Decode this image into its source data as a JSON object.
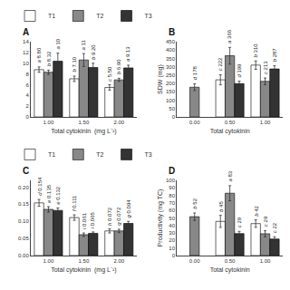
{
  "chart_data": [
    {
      "type": "bar",
      "title": "A",
      "xlabel": "Total cytokinin  (mg L⁻¹)",
      "categories": [
        "1.00",
        "1.50",
        "2.00"
      ],
      "ylim": [
        0,
        14
      ],
      "yticks": [
        0,
        2,
        4,
        6,
        8,
        10,
        12,
        14
      ],
      "grid": false,
      "legend": "upper right",
      "data_labels": true,
      "series": [
        {
          "name": "T1",
          "color": "white",
          "values": [
            8.8,
            7.1,
            5.5
          ],
          "errors": [
            0.5,
            0.5,
            0.5
          ],
          "letters": [
            "a",
            "b",
            "c"
          ],
          "value_labels": [
            "8.80",
            "7.10",
            "5.50"
          ]
        },
        {
          "name": "T2",
          "color": "#888888",
          "values": [
            8.32,
            10.6,
            6.9
          ],
          "errors": [
            0.4,
            1.2,
            0.3
          ],
          "letters": [
            "b",
            "a",
            "b"
          ],
          "value_labels": [
            "8.32",
            "11",
            "6.90"
          ]
        },
        {
          "name": "T3",
          "color": "#333333",
          "values": [
            10.37,
            9.2,
            9.13
          ],
          "errors": [
            1.5,
            0.8,
            0.5
          ],
          "letters": [
            "a",
            "b",
            "a"
          ],
          "value_labels": [
            "10",
            "9.20",
            "9.13"
          ]
        }
      ]
    },
    {
      "type": "bar",
      "title": "B",
      "xlabel": "Total cytokinin",
      "ylabel": "SDW (mg)",
      "categories": [
        "0.00",
        "0.50",
        "1.00"
      ],
      "ylim": [
        0,
        450
      ],
      "yticks": [
        0,
        50,
        100,
        150,
        200,
        250,
        300,
        350,
        400,
        450
      ],
      "grid": false,
      "data_labels": true,
      "series": [
        {
          "name": "T1",
          "color": "white",
          "values": [
            null,
            222,
            310
          ],
          "errors": [
            null,
            30,
            25
          ],
          "letters": [
            null,
            "c",
            "b"
          ],
          "value_labels": [
            null,
            "222",
            "310"
          ]
        },
        {
          "name": "T2",
          "color": "#888888",
          "values": [
            178,
            366,
            213
          ],
          "errors": [
            20,
            50,
            20
          ],
          "letters": [
            "d",
            "a",
            "c"
          ],
          "value_labels": [
            "178",
            "366",
            "213"
          ]
        },
        {
          "name": "T3",
          "color": "#333333",
          "values": [
            null,
            199,
            287
          ],
          "errors": [
            null,
            15,
            20
          ],
          "letters": [
            null,
            "d",
            "b"
          ],
          "value_labels": [
            null,
            "199",
            "287"
          ]
        }
      ]
    },
    {
      "type": "bar",
      "title": "C",
      "xlabel": "Total cytokinin  (mg L⁻¹)",
      "categories": [
        "1.00",
        "1.50",
        "2.00"
      ],
      "ylim": [
        0,
        0.22
      ],
      "yticks": [
        {
          "value": 0.0,
          "label": "0.00"
        },
        0.05,
        {
          "value": 0.1,
          "label": "0.10"
        },
        0.15,
        {
          "value": 0.2,
          "label": "0.20"
        }
      ],
      "grid": false,
      "legend": "upper right",
      "data_labels": true,
      "series": [
        {
          "name": "T1",
          "color": "white",
          "values": [
            0.154,
            0.111,
            0.072
          ],
          "errors": [
            0.01,
            0.008,
            0.006
          ],
          "letters": [
            "d",
            "f",
            "h"
          ],
          "value_labels": [
            "0.154",
            "0.111",
            "0.072"
          ]
        },
        {
          "name": "T2",
          "color": "#888888",
          "values": [
            0.135,
            0.061,
            0.072
          ],
          "errors": [
            0.008,
            0.005,
            0.005
          ],
          "letters": [
            "e",
            "i",
            "g"
          ],
          "value_labels": [
            "0.135",
            "0.061",
            "0.072"
          ]
        },
        {
          "name": "T3",
          "color": "#333333",
          "values": [
            0.132,
            0.065,
            0.094
          ],
          "errors": [
            0.007,
            0.004,
            0.006
          ],
          "letters": [
            "e",
            "i",
            "g"
          ],
          "value_labels": [
            "0.132",
            "0.065",
            "0.094"
          ]
        }
      ]
    },
    {
      "type": "bar",
      "title": "D",
      "xlabel": "Total cytokinin",
      "ylabel": "Productivity (mg TC)",
      "categories": [
        "0.00",
        "0.50",
        "1.00"
      ],
      "ylim": [
        0,
        100
      ],
      "yticks": [
        0,
        10,
        20,
        30,
        40,
        50,
        60,
        70,
        80,
        90,
        100
      ],
      "grid": false,
      "data_labels": true,
      "series": [
        {
          "name": "T1",
          "color": "white",
          "values": [
            null,
            45.37,
            42.47
          ],
          "errors": [
            null,
            8,
            5
          ],
          "letters": [
            null,
            "b",
            "b"
          ],
          "value_labels": [
            null,
            "45",
            "42"
          ]
        },
        {
          "name": "T2",
          "color": "#888888",
          "values": [
            51.63,
            82.82,
            29.0
          ],
          "errors": [
            5,
            10,
            4
          ],
          "letters": [
            "b",
            "a",
            "c"
          ],
          "value_labels": [
            "52",
            "83",
            "29"
          ]
        },
        {
          "name": "T3",
          "color": "#333333",
          "values": [
            null,
            29.15,
            22.0
          ],
          "errors": [
            null,
            3,
            3
          ],
          "letters": [
            null,
            "c",
            "c"
          ],
          "value_labels": [
            null,
            "29",
            "22"
          ]
        }
      ]
    }
  ]
}
